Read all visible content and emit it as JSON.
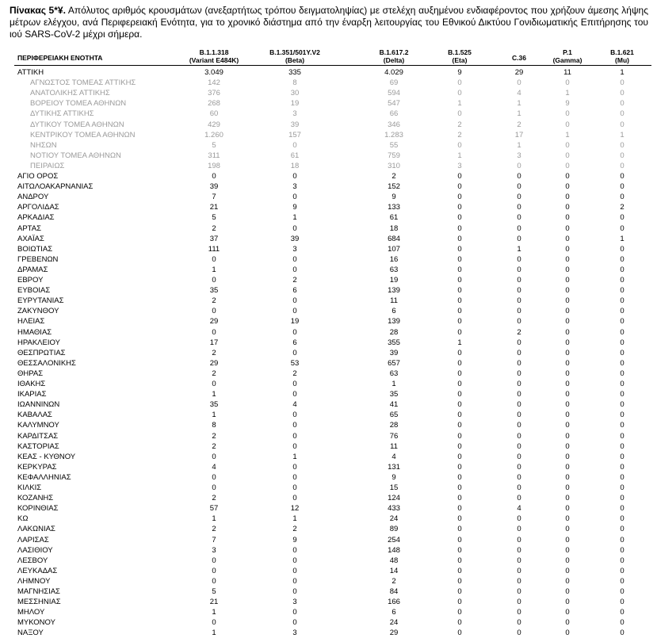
{
  "caption": {
    "label": "Πίνακας 5*¥.",
    "text": "Απόλυτος αριθμός κρουσμάτων (ανεξαρτήτως τρόπου δειγματοληψίας) με στελέχη αυξημένου ενδιαφέροντος που χρήζουν άμεσης λήψης μέτρων ελέγχου, ανά Περιφερειακή Ενότητα, για το χρονικό διάστημα από την έναρξη λειτουργίας του Εθνικού Δικτύου Γονιδιωματικής Επιτήρησης του ιού SARS-CoV-2 μέχρι σήμερα."
  },
  "table": {
    "columns": [
      [
        "ΠΕΡΙΦΕΡΕΙΑΚΗ ΕΝΟΤΗΤΑ"
      ],
      [
        "B.1.1.318",
        "(Variant E484K)"
      ],
      [
        "B.1.351/501Y.V2",
        "(Beta)"
      ],
      [
        "B.1.617.2",
        "(Delta)"
      ],
      [
        "B.1.525",
        "(Eta)"
      ],
      [
        "C.36"
      ],
      [
        "P.1",
        "(Gamma)"
      ],
      [
        "B.1.621",
        "(Mu)"
      ]
    ],
    "rows": [
      {
        "name": "ΑΤΤΙΚΗ",
        "values": [
          "3.049",
          "335",
          "4.029",
          "9",
          "29",
          "11",
          "1"
        ],
        "subrows": [
          {
            "name": "ΑΓΝΩΣΤΟΣ ΤΟΜΕΑΣ ΑΤΤΙΚΗΣ",
            "values": [
              "142",
              "8",
              "69",
              "0",
              "0",
              "0",
              "0"
            ]
          },
          {
            "name": "ΑΝΑΤΟΛΙΚΗΣ ΑΤΤΙΚΗΣ",
            "values": [
              "376",
              "30",
              "594",
              "0",
              "4",
              "1",
              "0"
            ]
          },
          {
            "name": "ΒΟΡΕΙΟΥ ΤΟΜΕΑ ΑΘΗΝΩΝ",
            "values": [
              "268",
              "19",
              "547",
              "1",
              "1",
              "9",
              "0"
            ]
          },
          {
            "name": "ΔΥΤΙΚΗΣ ΑΤΤΙΚΗΣ",
            "values": [
              "60",
              "3",
              "66",
              "0",
              "1",
              "0",
              "0"
            ]
          },
          {
            "name": "ΔΥΤΙΚΟΥ ΤΟΜΕΑ ΑΘΗΝΩΝ",
            "values": [
              "429",
              "39",
              "346",
              "2",
              "2",
              "0",
              "0"
            ]
          },
          {
            "name": "ΚΕΝΤΡΙΚΟΥ ΤΟΜΕΑ ΑΘΗΝΩΝ",
            "values": [
              "1.260",
              "157",
              "1.283",
              "2",
              "17",
              "1",
              "1"
            ]
          },
          {
            "name": "ΝΗΣΩΝ",
            "values": [
              "5",
              "0",
              "55",
              "0",
              "1",
              "0",
              "0"
            ]
          },
          {
            "name": "ΝΟΤΙΟΥ ΤΟΜΕΑ ΑΘΗΝΩΝ",
            "values": [
              "311",
              "61",
              "759",
              "1",
              "3",
              "0",
              "0"
            ]
          },
          {
            "name": "ΠΕΙΡΑΙΩΣ",
            "values": [
              "198",
              "18",
              "310",
              "3",
              "0",
              "0",
              "0"
            ]
          }
        ]
      },
      {
        "name": "ΑΓΙΟ ΟΡΟΣ",
        "values": [
          "0",
          "0",
          "2",
          "0",
          "0",
          "0",
          "0"
        ]
      },
      {
        "name": "ΑΙΤΩΛΟΑΚΑΡΝΑΝΙΑΣ",
        "values": [
          "39",
          "3",
          "152",
          "0",
          "0",
          "0",
          "0"
        ]
      },
      {
        "name": "ΑΝΔΡΟΥ",
        "values": [
          "7",
          "0",
          "9",
          "0",
          "0",
          "0",
          "0"
        ]
      },
      {
        "name": "ΑΡΓΟΛΙΔΑΣ",
        "values": [
          "21",
          "9",
          "133",
          "0",
          "0",
          "0",
          "2"
        ]
      },
      {
        "name": "ΑΡΚΑΔΙΑΣ",
        "values": [
          "5",
          "1",
          "61",
          "0",
          "0",
          "0",
          "0"
        ]
      },
      {
        "name": "ΑΡΤΑΣ",
        "values": [
          "2",
          "0",
          "18",
          "0",
          "0",
          "0",
          "0"
        ]
      },
      {
        "name": "ΑΧΑΪΑΣ",
        "values": [
          "37",
          "39",
          "684",
          "0",
          "0",
          "0",
          "1"
        ]
      },
      {
        "name": "ΒΟΙΩΤΙΑΣ",
        "values": [
          "111",
          "3",
          "107",
          "0",
          "1",
          "0",
          "0"
        ]
      },
      {
        "name": "ΓΡΕΒΕΝΩΝ",
        "values": [
          "0",
          "0",
          "16",
          "0",
          "0",
          "0",
          "0"
        ]
      },
      {
        "name": "ΔΡΑΜΑΣ",
        "values": [
          "1",
          "0",
          "63",
          "0",
          "0",
          "0",
          "0"
        ]
      },
      {
        "name": "ΕΒΡΟΥ",
        "values": [
          "0",
          "2",
          "19",
          "0",
          "0",
          "0",
          "0"
        ]
      },
      {
        "name": "ΕΥΒΟΙΑΣ",
        "values": [
          "35",
          "6",
          "139",
          "0",
          "0",
          "0",
          "0"
        ]
      },
      {
        "name": "ΕΥΡΥΤΑΝΙΑΣ",
        "values": [
          "2",
          "0",
          "11",
          "0",
          "0",
          "0",
          "0"
        ]
      },
      {
        "name": "ΖΑΚΥΝΘΟΥ",
        "values": [
          "0",
          "0",
          "6",
          "0",
          "0",
          "0",
          "0"
        ]
      },
      {
        "name": "ΗΛΕΙΑΣ",
        "values": [
          "29",
          "19",
          "139",
          "0",
          "0",
          "0",
          "0"
        ]
      },
      {
        "name": "ΗΜΑΘΙΑΣ",
        "values": [
          "0",
          "0",
          "28",
          "0",
          "2",
          "0",
          "0"
        ]
      },
      {
        "name": "ΗΡΑΚΛΕΙΟΥ",
        "values": [
          "17",
          "6",
          "355",
          "1",
          "0",
          "0",
          "0"
        ]
      },
      {
        "name": "ΘΕΣΠΡΩΤΙΑΣ",
        "values": [
          "2",
          "0",
          "39",
          "0",
          "0",
          "0",
          "0"
        ]
      },
      {
        "name": "ΘΕΣΣΑΛΟΝΙΚΗΣ",
        "values": [
          "29",
          "53",
          "657",
          "0",
          "0",
          "0",
          "0"
        ]
      },
      {
        "name": "ΘΗΡΑΣ",
        "values": [
          "2",
          "2",
          "63",
          "0",
          "0",
          "0",
          "0"
        ]
      },
      {
        "name": "ΙΘΑΚΗΣ",
        "values": [
          "0",
          "0",
          "1",
          "0",
          "0",
          "0",
          "0"
        ]
      },
      {
        "name": "ΙΚΑΡΙΑΣ",
        "values": [
          "1",
          "0",
          "35",
          "0",
          "0",
          "0",
          "0"
        ]
      },
      {
        "name": "ΙΩΑΝΝΙΝΩΝ",
        "values": [
          "35",
          "4",
          "41",
          "0",
          "0",
          "0",
          "0"
        ]
      },
      {
        "name": "ΚΑΒΑΛΑΣ",
        "values": [
          "1",
          "0",
          "65",
          "0",
          "0",
          "0",
          "0"
        ]
      },
      {
        "name": "ΚΑΛΥΜΝΟΥ",
        "values": [
          "8",
          "0",
          "28",
          "0",
          "0",
          "0",
          "0"
        ]
      },
      {
        "name": "ΚΑΡΔΙΤΣΑΣ",
        "values": [
          "2",
          "0",
          "76",
          "0",
          "0",
          "0",
          "0"
        ]
      },
      {
        "name": "ΚΑΣΤΟΡΙΑΣ",
        "values": [
          "2",
          "0",
          "11",
          "0",
          "0",
          "0",
          "0"
        ]
      },
      {
        "name": "ΚΕΑΣ - ΚΥΘΝΟΥ",
        "values": [
          "0",
          "1",
          "4",
          "0",
          "0",
          "0",
          "0"
        ]
      },
      {
        "name": "ΚΕΡΚΥΡΑΣ",
        "values": [
          "4",
          "0",
          "131",
          "0",
          "0",
          "0",
          "0"
        ]
      },
      {
        "name": "ΚΕΦΑΛΛΗΝΙΑΣ",
        "values": [
          "0",
          "0",
          "9",
          "0",
          "0",
          "0",
          "0"
        ]
      },
      {
        "name": "ΚΙΛΚΙΣ",
        "values": [
          "0",
          "0",
          "15",
          "0",
          "0",
          "0",
          "0"
        ]
      },
      {
        "name": "ΚΟΖΑΝΗΣ",
        "values": [
          "2",
          "0",
          "124",
          "0",
          "0",
          "0",
          "0"
        ]
      },
      {
        "name": "ΚΟΡΙΝΘΙΑΣ",
        "values": [
          "57",
          "12",
          "433",
          "0",
          "4",
          "0",
          "0"
        ]
      },
      {
        "name": "ΚΩ",
        "values": [
          "1",
          "1",
          "24",
          "0",
          "0",
          "0",
          "0"
        ]
      },
      {
        "name": "ΛΑΚΩΝΙΑΣ",
        "values": [
          "2",
          "2",
          "89",
          "0",
          "0",
          "0",
          "0"
        ]
      },
      {
        "name": "ΛΑΡΙΣΑΣ",
        "values": [
          "7",
          "9",
          "254",
          "0",
          "0",
          "0",
          "0"
        ]
      },
      {
        "name": "ΛΑΣΙΘΙΟΥ",
        "values": [
          "3",
          "0",
          "148",
          "0",
          "0",
          "0",
          "0"
        ]
      },
      {
        "name": "ΛΕΣΒΟΥ",
        "values": [
          "0",
          "0",
          "48",
          "0",
          "0",
          "0",
          "0"
        ]
      },
      {
        "name": "ΛΕΥΚΑΔΑΣ",
        "values": [
          "0",
          "0",
          "14",
          "0",
          "0",
          "0",
          "0"
        ]
      },
      {
        "name": "ΛΗΜΝΟΥ",
        "values": [
          "0",
          "0",
          "2",
          "0",
          "0",
          "0",
          "0"
        ]
      },
      {
        "name": "ΜΑΓΝΗΣΙΑΣ",
        "values": [
          "5",
          "0",
          "84",
          "0",
          "0",
          "0",
          "0"
        ]
      },
      {
        "name": "ΜΕΣΣΗΝΙΑΣ",
        "values": [
          "21",
          "3",
          "166",
          "0",
          "0",
          "0",
          "0"
        ]
      },
      {
        "name": "ΜΗΛΟΥ",
        "values": [
          "1",
          "0",
          "6",
          "0",
          "0",
          "0",
          "0"
        ]
      },
      {
        "name": "ΜΥΚΟΝΟΥ",
        "values": [
          "0",
          "0",
          "24",
          "0",
          "0",
          "0",
          "0"
        ]
      },
      {
        "name": "ΝΑΞΟΥ",
        "values": [
          "1",
          "3",
          "29",
          "0",
          "0",
          "0",
          "0"
        ]
      }
    ]
  }
}
